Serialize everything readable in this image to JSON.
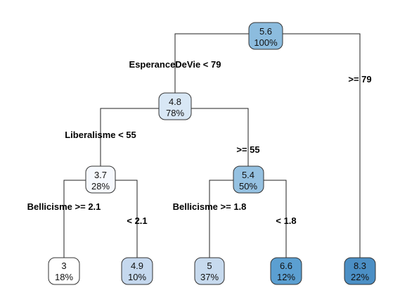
{
  "tree": {
    "nodes": [
      {
        "id": "root",
        "value": "5.6",
        "percent": "100%",
        "color": "#8cbcde"
      },
      {
        "id": "n2",
        "value": "4.8",
        "percent": "78%",
        "color": "#d8e7f5"
      },
      {
        "id": "n4",
        "value": "3.7",
        "percent": "28%",
        "color": "#f6f9fe"
      },
      {
        "id": "n5",
        "value": "5.4",
        "percent": "50%",
        "color": "#95c1e1"
      },
      {
        "id": "n8",
        "value": "3",
        "percent": "18%",
        "color": "#ffffff"
      },
      {
        "id": "n9",
        "value": "4.9",
        "percent": "10%",
        "color": "#c5d8ee"
      },
      {
        "id": "n10",
        "value": "5",
        "percent": "37%",
        "color": "#c7daee"
      },
      {
        "id": "n11",
        "value": "6.6",
        "percent": "12%",
        "color": "#5b9fd1"
      },
      {
        "id": "n3",
        "value": "8.3",
        "percent": "22%",
        "color": "#4b8fc5"
      }
    ],
    "splits": [
      {
        "id": "s-root-left",
        "label": "EsperanceDeVie < 79"
      },
      {
        "id": "s-root-right",
        "label": ">= 79"
      },
      {
        "id": "s-n2-left",
        "label": "Liberalisme < 55"
      },
      {
        "id": "s-n2-right",
        "label": ">= 55"
      },
      {
        "id": "s-n4-left",
        "label": "Bellicisme >= 2.1"
      },
      {
        "id": "s-n4-right",
        "label": "< 2.1"
      },
      {
        "id": "s-n5-left",
        "label": "Bellicisme >= 1.8"
      },
      {
        "id": "s-n5-right",
        "label": "< 1.8"
      }
    ]
  }
}
